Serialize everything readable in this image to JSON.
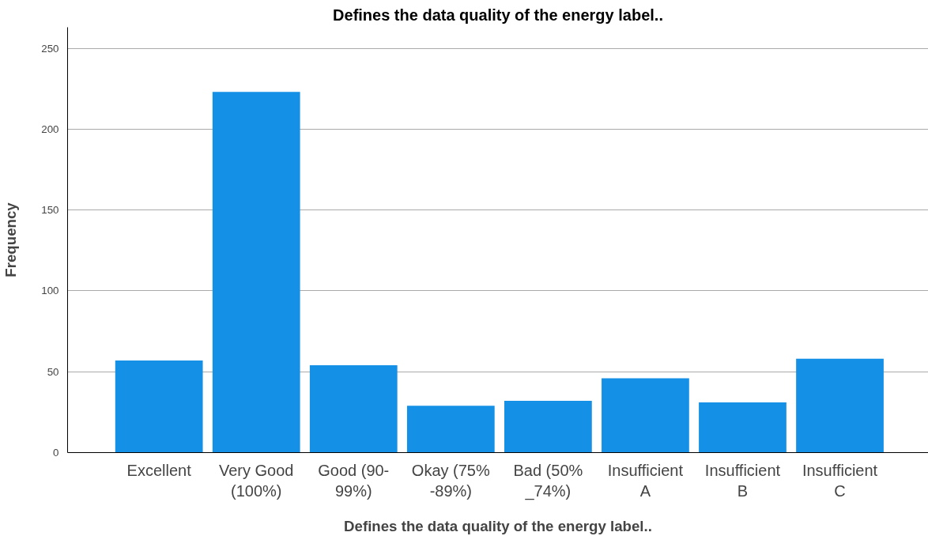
{
  "chart_data": {
    "type": "bar",
    "title": "Defines the data quality of the energy label..",
    "xlabel": "Defines the data quality of the energy label..",
    "ylabel": "Frequency",
    "categories": [
      "Excellent",
      "Very Good\n(100%)",
      "Good (90-\n99%)",
      "Okay (75%\n-89%)",
      "Bad (50%\n_74%)",
      "Insufficient\nA",
      "Insufficient\nB",
      "Insufficient\nC"
    ],
    "values": [
      57,
      223,
      54,
      29,
      32,
      46,
      31,
      58
    ],
    "color": "#1490e6",
    "ylim": [
      0,
      263
    ],
    "yticks": [
      0,
      50,
      100,
      150,
      200,
      250
    ],
    "grid": "y"
  }
}
